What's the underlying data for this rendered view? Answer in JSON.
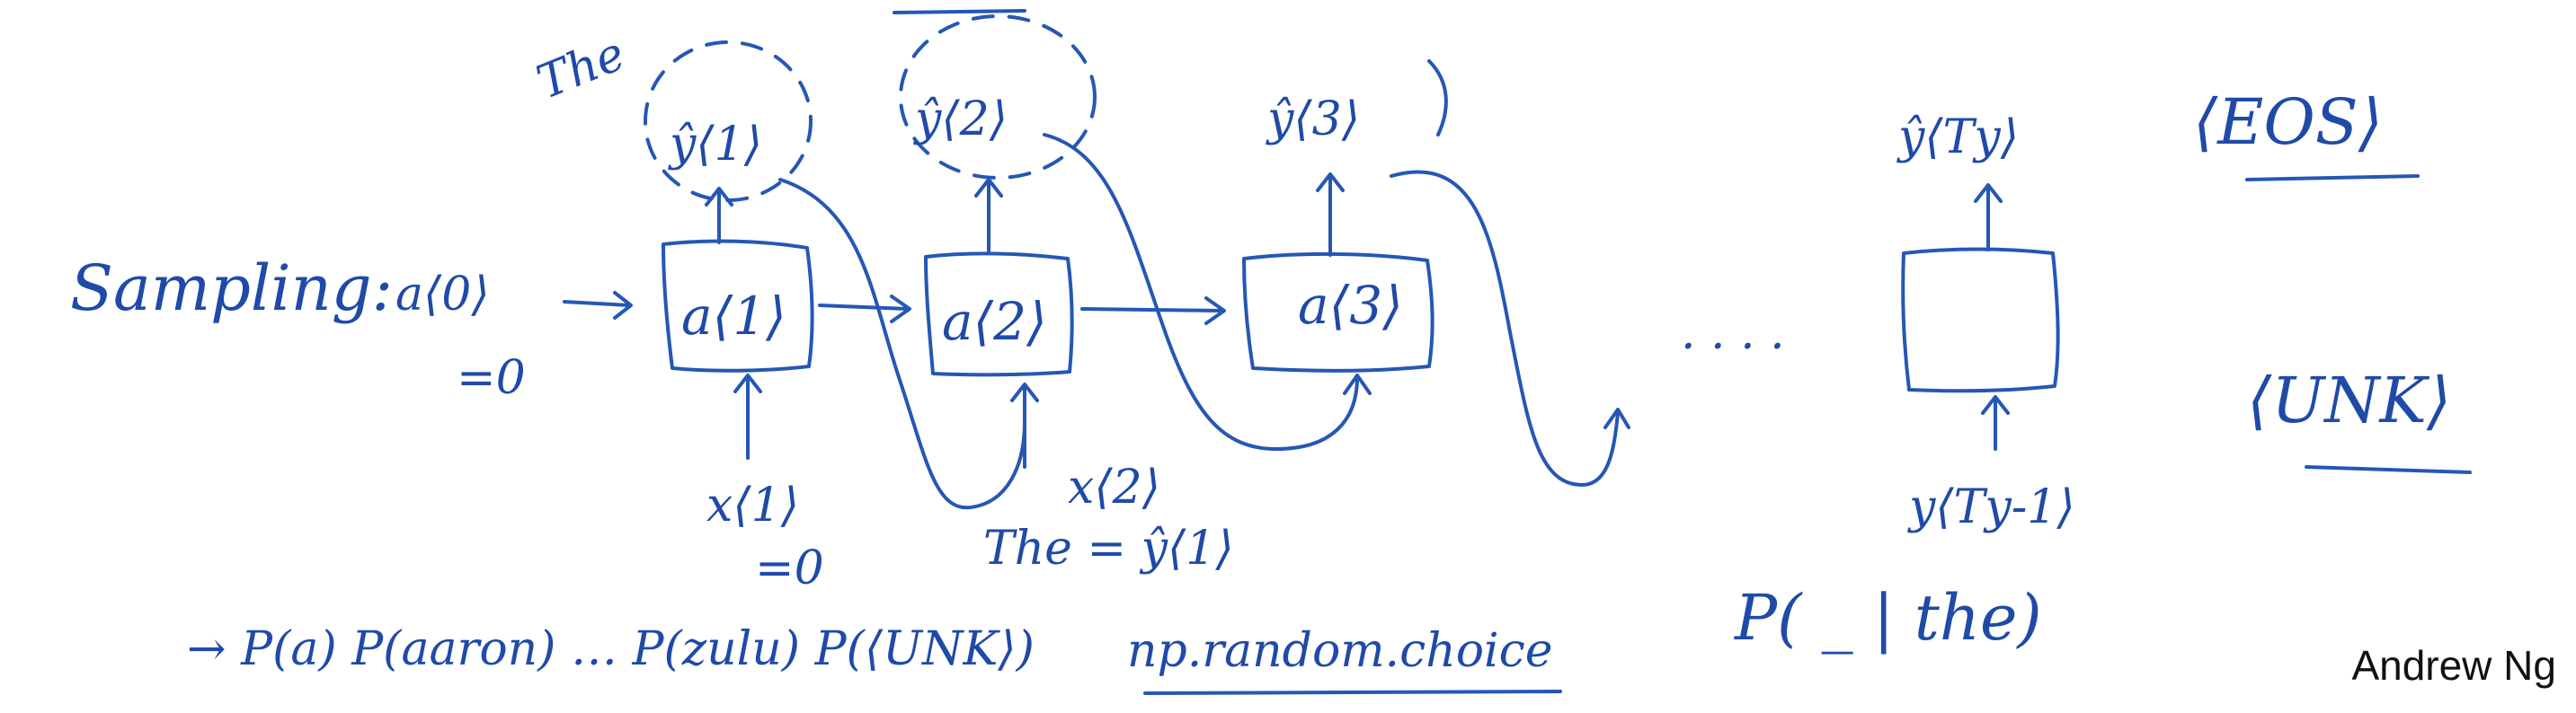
{
  "header": {
    "label": "Sampling:"
  },
  "initial": {
    "activation": "a⟨0⟩",
    "activation_value": "=0"
  },
  "cells": [
    {
      "label": "a⟨1⟩",
      "output": "ŷ⟨1⟩",
      "output_word": "The"
    },
    {
      "label": "a⟨2⟩",
      "output": "ŷ⟨2⟩"
    },
    {
      "label": "a⟨3⟩",
      "output": "ŷ⟨3⟩"
    },
    {
      "label": "",
      "output": "ŷ⟨Ty⟩"
    }
  ],
  "inputs": {
    "x1": "x⟨1⟩",
    "x1_value": "=0",
    "x2": "x⟨2⟩",
    "x2_equation": "The = ŷ⟨1⟩",
    "y_prev": "y⟨Ty-1⟩"
  },
  "ellipsis": ". . . .",
  "tokens": {
    "eos": "⟨EOS⟩",
    "unk": "⟨UNK⟩"
  },
  "notes": {
    "distribution": "→ P(a) P(aaron) … P(zulu) P(⟨UNK⟩)",
    "function": "np.random.choice",
    "conditional": "P( _ | the)"
  },
  "credit": "Andrew Ng",
  "colors": {
    "ink": "#2557b5",
    "credit": "#111111",
    "background": "#ffffff"
  }
}
